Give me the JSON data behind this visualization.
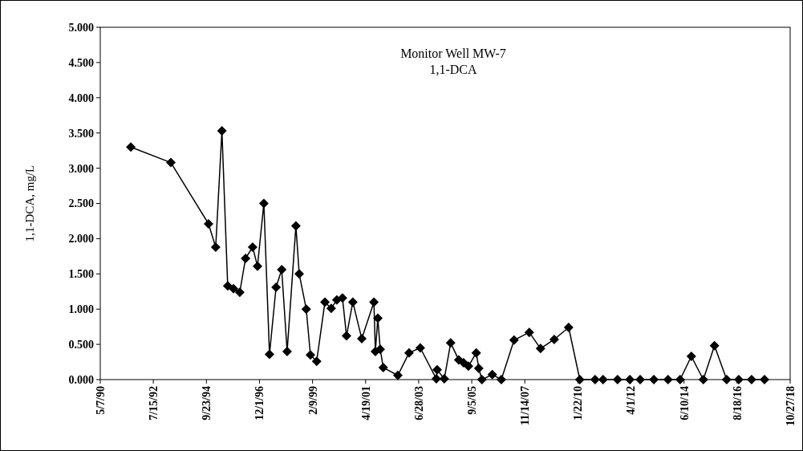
{
  "chart_data": {
    "type": "line",
    "title": "Monitor Well MW-7",
    "subtitle": "1,1-DCA",
    "ylabel": "1,1-DCA, mg/L",
    "x": [
      "1991-08-10",
      "1993-04-05",
      "1994-10-25",
      "1995-02-10",
      "1995-05-15",
      "1995-08-10",
      "1995-11-05",
      "1996-02-08",
      "1996-05-05",
      "1996-08-20",
      "1996-11-01",
      "1997-02-05",
      "1997-05-01",
      "1997-08-08",
      "1997-11-01",
      "1998-01-22",
      "1998-06-03",
      "1998-07-23",
      "1998-11-06",
      "1999-01-08",
      "1999-04-12",
      "1999-08-15",
      "1999-11-17",
      "2000-02-10",
      "2000-05-05",
      "2000-07-05",
      "2000-10-08",
      "2001-02-20",
      "2001-08-22",
      "2001-09-13",
      "2001-10-20",
      "2001-11-25",
      "2002-01-10",
      "2002-08-18",
      "2003-02-03",
      "2003-07-22",
      "2004-03-20",
      "2004-04-01",
      "2004-07-18",
      "2004-10-22",
      "2005-02-20",
      "2005-05-05",
      "2005-07-17",
      "2005-11-12",
      "2005-12-20",
      "2006-02-05",
      "2006-07-12",
      "2006-11-25",
      "2007-06-05",
      "2008-01-20",
      "2008-07-08",
      "2009-01-30",
      "2009-09-05",
      "2010-02-20",
      "2010-10-08",
      "2011-02-05",
      "2011-09-12",
      "2012-03-15",
      "2012-08-18",
      "2013-03-12",
      "2013-10-12",
      "2014-04-12",
      "2014-09-28",
      "2015-03-28",
      "2015-09-12",
      "2016-03-14",
      "2016-09-12",
      "2017-03-25",
      "2017-10-05"
    ],
    "series": [
      {
        "color": "#000000",
        "values": [
          3.3,
          3.08,
          2.21,
          1.88,
          3.53,
          1.33,
          1.29,
          1.24,
          1.72,
          1.88,
          1.61,
          2.5,
          0.36,
          1.31,
          1.56,
          0.4,
          2.18,
          1.5,
          1.0,
          0.35,
          0.26,
          1.1,
          1.01,
          1.13,
          1.16,
          0.62,
          1.1,
          0.58,
          1.1,
          0.4,
          0.87,
          0.43,
          0.17,
          0.06,
          0.38,
          0.45,
          0.01,
          0.14,
          0.01,
          0.52,
          0.28,
          0.24,
          0.19,
          0.38,
          0.16,
          0.0,
          0.07,
          0.0,
          0.56,
          0.67,
          0.44,
          0.57,
          0.74,
          0.0,
          0.0,
          0.0,
          0.0,
          0.0,
          0.0,
          0.0,
          0.0,
          0.0,
          0.33,
          0.0,
          0.48,
          0.0,
          0.0,
          0.0,
          0.0
        ]
      }
    ],
    "xlim": [
      "1990-05-07",
      "2018-10-27"
    ],
    "xticks": [
      {
        "value": "1990-05-07",
        "label": "5/7/90"
      },
      {
        "value": "1992-07-15",
        "label": "7/15/92"
      },
      {
        "value": "1994-09-23",
        "label": "9/23/94"
      },
      {
        "value": "1996-12-01",
        "label": "12/1/96"
      },
      {
        "value": "1999-02-09",
        "label": "2/9/99"
      },
      {
        "value": "2001-04-19",
        "label": "4/19/01"
      },
      {
        "value": "2003-06-28",
        "label": "6/28/03"
      },
      {
        "value": "2005-09-05",
        "label": "9/5/05"
      },
      {
        "value": "2007-11-14",
        "label": "11/14/07"
      },
      {
        "value": "2010-01-22",
        "label": "1/22/10"
      },
      {
        "value": "2012-04-01",
        "label": "4/1/12"
      },
      {
        "value": "2014-06-10",
        "label": "6/10/14"
      },
      {
        "value": "2016-08-18",
        "label": "8/18/16"
      },
      {
        "value": "2018-10-27",
        "label": "10/27/18"
      }
    ],
    "ylim": [
      0,
      5
    ],
    "yticks": [
      {
        "value": 0,
        "label": "0.000"
      },
      {
        "value": 0.5,
        "label": "0.500"
      },
      {
        "value": 1,
        "label": "1.000"
      },
      {
        "value": 1.5,
        "label": "1.500"
      },
      {
        "value": 2,
        "label": "2.000"
      },
      {
        "value": 2.5,
        "label": "2.500"
      },
      {
        "value": 3,
        "label": "3.000"
      },
      {
        "value": 3.5,
        "label": "3.500"
      },
      {
        "value": 4,
        "label": "4.000"
      },
      {
        "value": 4.5,
        "label": "4.500"
      },
      {
        "value": 5,
        "label": "5.000"
      }
    ],
    "grid": false,
    "marker": "diamond",
    "line_style": "solid"
  }
}
